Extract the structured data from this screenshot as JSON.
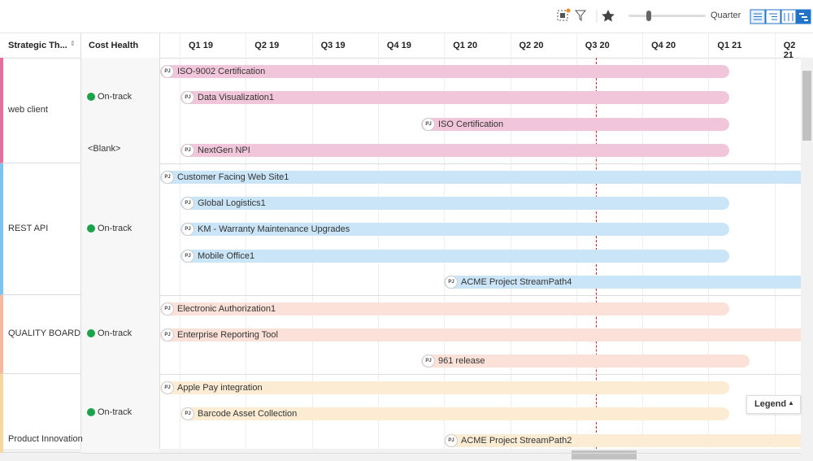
{
  "toolbar": {
    "zoom_label": "Quarter"
  },
  "columns": [
    "Strategic Th...",
    "Cost Health"
  ],
  "timeline": [
    "Q1 19",
    "Q2 19",
    "Q3 19",
    "Q4 19",
    "Q1 20",
    "Q2 20",
    "Q3 20",
    "Q4 20",
    "Q1 21",
    "Q2 21"
  ],
  "badge": "PJ",
  "groups": [
    {
      "theme": "web client",
      "rows": [
        {
          "cost_health": "On-track",
          "projects": [
            "ISO-9002 Certification",
            "Data Visualization1",
            "ISO Certification"
          ]
        },
        {
          "cost_health": "<Blank>",
          "projects": [
            "NextGen NPI"
          ]
        }
      ]
    },
    {
      "theme": "REST API",
      "rows": [
        {
          "cost_health": "On-track",
          "projects": [
            "Customer Facing Web Site1",
            "Global Logistics1",
            "KM - Warranty Maintenance Upgrades",
            "Mobile Office1",
            "ACME Project StreamPath4"
          ]
        }
      ]
    },
    {
      "theme": "QUALITY BOARD",
      "rows": [
        {
          "cost_health": "On-track",
          "projects": [
            "Electronic Authorization1",
            "Enterprise Reporting Tool",
            "961 release"
          ]
        }
      ]
    },
    {
      "theme": "Product Innovation",
      "rows": [
        {
          "cost_health": "On-track",
          "projects": [
            "Apple Pay integration",
            "Barcode Asset Collection",
            "ACME Project StreamPath2"
          ]
        }
      ]
    }
  ],
  "legend": "Legend"
}
